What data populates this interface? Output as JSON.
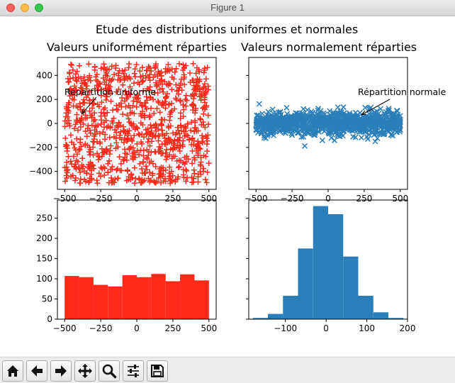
{
  "window": {
    "title": "Figure 1"
  },
  "figure": {
    "suptitle": "Etude des distributions uniformes et normales"
  },
  "toolbar": {
    "buttons": [
      {
        "name": "home-button",
        "icon": "home-icon"
      },
      {
        "name": "back-button",
        "icon": "arrow-left-icon"
      },
      {
        "name": "forward-button",
        "icon": "arrow-right-icon"
      },
      {
        "name": "pan-button",
        "icon": "move-icon"
      },
      {
        "name": "zoom-button",
        "icon": "magnifier-icon"
      },
      {
        "name": "configure-subplots-button",
        "icon": "sliders-icon"
      },
      {
        "name": "save-button",
        "icon": "floppy-disk-icon"
      }
    ]
  },
  "colors": {
    "uniform": "#ff2a1a",
    "normal": "#2a7fba"
  },
  "chart_data": [
    {
      "type": "scatter",
      "title": "Valeurs uniformément réparties",
      "marker": "+",
      "xlim": [
        -550,
        550
      ],
      "ylim": [
        -550,
        550
      ],
      "xticks": [
        "−500",
        "−250",
        "0",
        "250",
        "500"
      ],
      "yticks": [
        "400",
        "200",
        "0",
        "−200",
        "−400"
      ],
      "points": {
        "count": 1000,
        "x_range": [
          -500,
          500
        ],
        "y_range": [
          -500,
          500
        ]
      },
      "annotation": {
        "text": "Répartition uniforme",
        "xy": [
          -400,
          0
        ],
        "xytext": [
          -500,
          200
        ]
      }
    },
    {
      "type": "scatter",
      "title": "Valeurs normalement réparties",
      "marker": "x",
      "xlim": [
        -550,
        550
      ],
      "ylim": [
        -550,
        550
      ],
      "xticks": [
        "−500",
        "−250",
        "0",
        "250",
        "500"
      ],
      "points": {
        "count": 1000,
        "x_range": [
          -500,
          500
        ],
        "y_mean": 0,
        "y_std": 50
      },
      "annotation": {
        "text": "Répartition normale",
        "xy": [
          200,
          0
        ],
        "xytext": [
          200,
          200
        ]
      }
    },
    {
      "type": "bar",
      "xlim": [
        -550,
        550
      ],
      "ylim": [
        0,
        295
      ],
      "xticks": [
        "−500",
        "−250",
        "0",
        "250",
        "500"
      ],
      "yticks": [
        "250",
        "200",
        "150",
        "100",
        "50",
        "0"
      ],
      "bin_edges": [
        -500,
        -400,
        -300,
        -200,
        -100,
        0,
        100,
        200,
        300,
        400,
        500
      ],
      "values": [
        107,
        104,
        85,
        81,
        109,
        104,
        112,
        94,
        111,
        96
      ]
    },
    {
      "type": "bar",
      "xlim": [
        -190,
        200
      ],
      "ylim": [
        0,
        295
      ],
      "xticks": [
        "−100",
        "0",
        "100",
        "200"
      ],
      "bin_edges": [
        -180,
        -143,
        -106,
        -69,
        -32,
        5,
        42,
        79,
        116,
        153,
        190
      ],
      "values": [
        3,
        13,
        58,
        175,
        280,
        260,
        155,
        58,
        17,
        3
      ]
    }
  ]
}
